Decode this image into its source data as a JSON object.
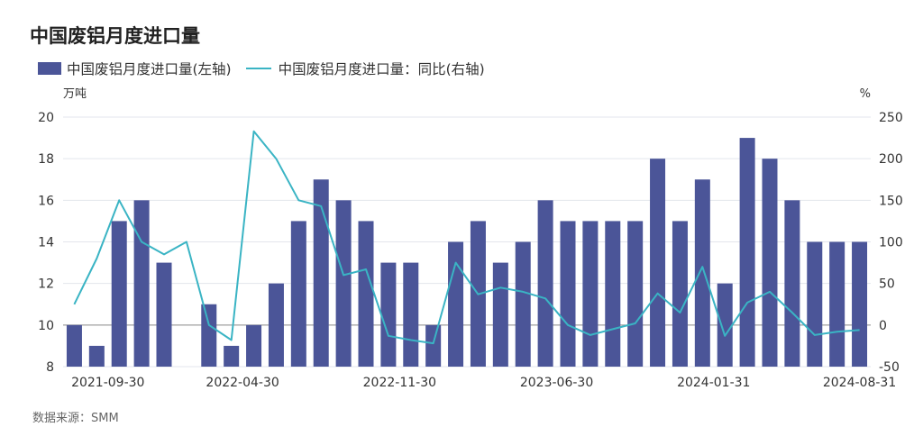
{
  "title": "中国废铝月度进口量",
  "source": "数据来源：SMM",
  "colors": {
    "bar": "#4b5598",
    "line": "#3ab4c4",
    "grid": "#e3e6ec",
    "baseline": "#888888"
  },
  "chart_data": {
    "type": "bar+line",
    "title": "中国废铝月度进口量",
    "left_axis": {
      "unit": "万吨",
      "range": [
        8,
        20
      ],
      "ticks": [
        8,
        10,
        12,
        14,
        16,
        18,
        20
      ]
    },
    "right_axis": {
      "unit": "%",
      "range": [
        -50,
        250
      ],
      "ticks": [
        -50,
        0,
        50,
        100,
        150,
        200,
        250
      ]
    },
    "x_tick_labels": [
      "2021-09-30",
      "2022-04-30",
      "2022-11-30",
      "2023-06-30",
      "2024-01-31",
      "2024-08-31"
    ],
    "x_tick_indices": [
      1.5,
      7.5,
      14.5,
      21.5,
      28.5,
      35
    ],
    "legend_position": "top-left",
    "grid": true,
    "series": [
      {
        "name": "中国废铝月度进口量(左轴)",
        "type": "bar",
        "axis": "left",
        "values": [
          10,
          9,
          15,
          16,
          13,
          null,
          11,
          9,
          10,
          12,
          15,
          17,
          16,
          15,
          13,
          13,
          10,
          14,
          15,
          13,
          14,
          16,
          15,
          15,
          15,
          15,
          18,
          15,
          17,
          12,
          19,
          18,
          16,
          14,
          14,
          14
        ]
      },
      {
        "name": "中国废铝月度进口量：同比(右轴)",
        "type": "line",
        "axis": "right",
        "values": [
          25,
          80,
          150,
          100,
          85,
          100,
          0,
          -18,
          233,
          200,
          150,
          143,
          60,
          67,
          -13,
          -18,
          -22,
          75,
          37,
          45,
          40,
          32,
          0,
          -12,
          -5,
          2,
          38,
          15,
          70,
          -13,
          27,
          40,
          15,
          -12,
          -8,
          -6
        ]
      }
    ]
  }
}
